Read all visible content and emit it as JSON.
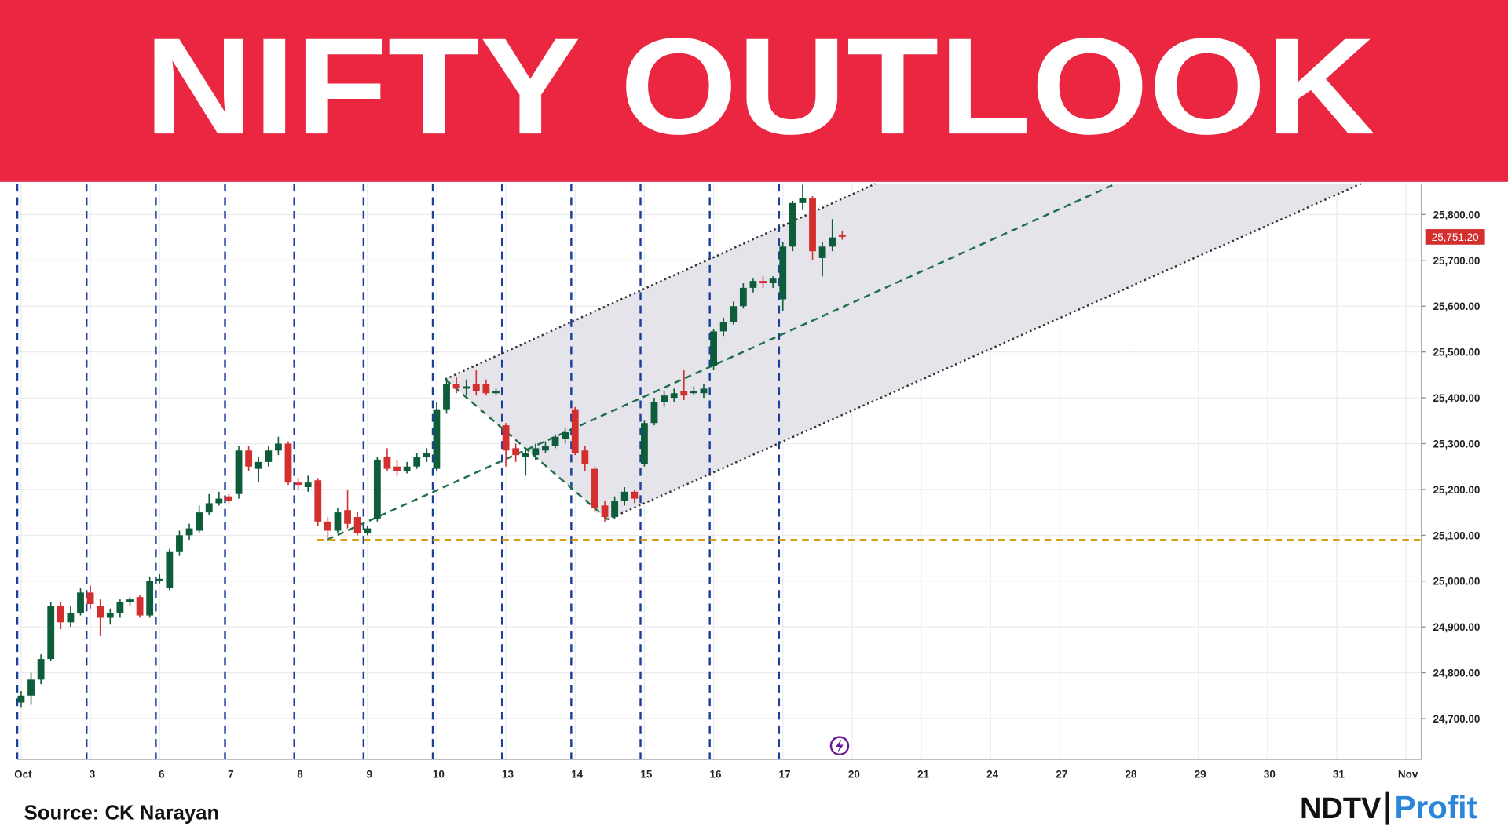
{
  "chart_data": {
    "type": "candlestick",
    "title": "NIFTY OUTLOOK",
    "source": "Source: CK Narayan",
    "logo": {
      "brand": "NDTV",
      "product": "Profit"
    },
    "up_color": "#0d5c3a",
    "down_color": "#d32f2f",
    "categories": [
      "Oct",
      null,
      null,
      null,
      null,
      null,
      null,
      "3",
      null,
      null,
      null,
      null,
      null,
      null,
      "6",
      null,
      null,
      null,
      null,
      null,
      null,
      "7",
      null,
      null,
      null,
      null,
      null,
      null,
      "8",
      null,
      null,
      null,
      null,
      null,
      null,
      "9",
      null,
      null,
      null,
      null,
      null,
      null,
      "10",
      null,
      null,
      null,
      null,
      null,
      null,
      "13",
      null,
      null,
      null,
      null,
      null,
      null,
      "14",
      null,
      null,
      null,
      null,
      null,
      null,
      "15",
      null,
      null,
      null,
      null,
      null,
      null,
      "16",
      null,
      null,
      null,
      null,
      null,
      null,
      "17",
      null,
      null,
      null,
      null,
      null,
      null,
      "20",
      null,
      null,
      null,
      null,
      null,
      null,
      "21",
      null,
      null,
      null,
      null,
      null,
      null,
      "24",
      null,
      null,
      null,
      null,
      null,
      null,
      "27",
      null,
      null,
      null,
      null,
      null,
      null,
      "28",
      null,
      null,
      null,
      null,
      null,
      null,
      "29",
      null,
      null,
      null,
      null,
      null,
      null,
      "30",
      null,
      null,
      null,
      null,
      null,
      null,
      "31",
      null,
      null,
      null,
      null,
      null,
      null,
      "Nov"
    ],
    "open": [
      24735,
      24750,
      24785,
      24830,
      24945,
      24910,
      24930,
      24975,
      24945,
      24920,
      24930,
      24955,
      24965,
      24925,
      25000,
      24985,
      25065,
      25100,
      25110,
      25150,
      25170,
      25185,
      25190,
      25285,
      25245,
      25260,
      25285,
      25300,
      25215,
      25205,
      25220,
      25130,
      25110,
      25155,
      25140,
      25105,
      25135,
      25270,
      25250,
      25240,
      25250,
      25270,
      25245,
      25375,
      25430,
      25420,
      25430,
      25430,
      25410,
      25340,
      25290,
      25270,
      25275,
      25285,
      25295,
      25310,
      25375,
      25285,
      25245,
      25165,
      25140,
      25175,
      25195,
      25255,
      25345,
      25390,
      25400,
      25415,
      25410,
      25410,
      25470,
      25545,
      25565,
      25600,
      25640,
      25655,
      25650,
      25615,
      25730,
      25825,
      25835,
      25705,
      25730,
      25755,
      null,
      null,
      null,
      null,
      null,
      null,
      null,
      null,
      null,
      null,
      null,
      null,
      null,
      null,
      null,
      null,
      null,
      null,
      null,
      null,
      null,
      null,
      null,
      null,
      null,
      null,
      null,
      null,
      null,
      null,
      null,
      null,
      null,
      null,
      null,
      null,
      null,
      null,
      null,
      null,
      null,
      null,
      null,
      null,
      null,
      null,
      null,
      null,
      null,
      null,
      null,
      null,
      null,
      null,
      null,
      null,
      null
    ],
    "high": [
      24760,
      24800,
      24840,
      24955,
      24955,
      24945,
      24985,
      24990,
      24960,
      24940,
      24960,
      24965,
      24970,
      25010,
      25015,
      25070,
      25110,
      25125,
      25165,
      25190,
      25195,
      25190,
      25295,
      25295,
      25270,
      25295,
      25315,
      25305,
      25225,
      25230,
      25225,
      25140,
      25160,
      25200,
      25150,
      25120,
      25270,
      25290,
      25265,
      25260,
      25280,
      25290,
      25390,
      25440,
      25445,
      25440,
      25460,
      25440,
      25420,
      25345,
      25300,
      25290,
      25300,
      25305,
      25320,
      25335,
      25380,
      25295,
      25250,
      25175,
      25185,
      25205,
      25200,
      25350,
      25400,
      25415,
      25420,
      25460,
      25425,
      25430,
      25550,
      25575,
      25610,
      25650,
      25660,
      25665,
      25665,
      25740,
      25830,
      25865,
      25840,
      25740,
      25790,
      25765,
      null,
      null,
      null,
      null,
      null,
      null,
      null,
      null,
      null,
      null,
      null,
      null,
      null,
      null,
      null,
      null,
      null,
      null,
      null,
      null,
      null,
      null,
      null,
      null,
      null,
      null,
      null,
      null,
      null,
      null,
      null,
      null,
      null,
      null,
      null,
      null,
      null,
      null,
      null,
      null,
      null,
      null,
      null,
      null,
      null,
      null,
      null,
      null,
      null,
      null,
      null,
      null,
      null,
      null,
      null,
      null,
      null
    ],
    "low": [
      24725,
      24730,
      24775,
      24825,
      24895,
      24900,
      24925,
      24940,
      24880,
      24905,
      24920,
      24945,
      24920,
      24920,
      24995,
      24980,
      25055,
      25090,
      25105,
      25145,
      25165,
      25170,
      25180,
      25240,
      25215,
      25250,
      25275,
      25210,
      25200,
      25195,
      25120,
      25090,
      25105,
      25115,
      25100,
      25100,
      25130,
      25240,
      25230,
      25235,
      25245,
      25260,
      25240,
      25365,
      25410,
      25405,
      25405,
      25405,
      25405,
      25250,
      25260,
      25230,
      25265,
      25280,
      25290,
      25300,
      25275,
      25240,
      25150,
      25130,
      25135,
      25165,
      25170,
      25250,
      25340,
      25380,
      25390,
      25395,
      25405,
      25400,
      25460,
      25535,
      25560,
      25595,
      25630,
      25640,
      25640,
      25590,
      25720,
      25810,
      25700,
      25665,
      25720,
      25745,
      null,
      null,
      null,
      null,
      null,
      null,
      null,
      null,
      null,
      null,
      null,
      null,
      null,
      null,
      null,
      null,
      null,
      null,
      null,
      null,
      null,
      null,
      null,
      null,
      null,
      null,
      null,
      null,
      null,
      null,
      null,
      null,
      null,
      null,
      null,
      null,
      null,
      null,
      null,
      null,
      null,
      null,
      null,
      null,
      null,
      null,
      null,
      null,
      null,
      null,
      null,
      null,
      null,
      null,
      null,
      null,
      null
    ],
    "close": [
      24750,
      24785,
      24830,
      24945,
      24910,
      24930,
      24975,
      24950,
      24920,
      24930,
      24955,
      24960,
      24925,
      25000,
      25005,
      25065,
      25100,
      25115,
      25150,
      25170,
      25180,
      25175,
      25285,
      25250,
      25260,
      25285,
      25300,
      25215,
      25210,
      25215,
      25130,
      25110,
      25150,
      25125,
      25105,
      25115,
      25265,
      25245,
      25240,
      25250,
      25270,
      25280,
      25375,
      25430,
      25420,
      25425,
      25415,
      25410,
      25415,
      25285,
      25275,
      25280,
      25290,
      25295,
      25315,
      25325,
      25280,
      25255,
      25160,
      25140,
      25175,
      25195,
      25180,
      25345,
      25390,
      25405,
      25410,
      25405,
      25415,
      25420,
      25545,
      25565,
      25600,
      25640,
      25655,
      25650,
      25660,
      25730,
      25825,
      25835,
      25720,
      25730,
      25750,
      25751.2,
      null,
      null,
      null,
      null,
      null,
      null,
      null,
      null,
      null,
      null,
      null,
      null,
      null,
      null,
      null,
      null,
      null,
      null,
      null,
      null,
      null,
      null,
      null,
      null,
      null,
      null,
      null,
      null,
      null,
      null,
      null,
      null,
      null,
      null,
      null,
      null,
      null,
      null,
      null,
      null,
      null,
      null,
      null,
      null,
      null,
      null,
      null,
      null,
      null,
      null,
      null,
      null,
      null,
      null,
      null,
      null,
      null
    ],
    "last_price": {
      "value": 25751.2,
      "label": "25,751.20"
    },
    "support_level": 25090,
    "ylim": [
      24611,
      25867
    ],
    "yticks": [
      {
        "value": 24700,
        "label": "24,700.00"
      },
      {
        "value": 24800,
        "label": "24,800.00"
      },
      {
        "value": 24900,
        "label": "24,900.00"
      },
      {
        "value": 25000,
        "label": "25,000.00"
      },
      {
        "value": 25100,
        "label": "25,100.00"
      },
      {
        "value": 25200,
        "label": "25,200.00"
      },
      {
        "value": 25300,
        "label": "25,300.00"
      },
      {
        "value": 25400,
        "label": "25,400.00"
      },
      {
        "value": 25500,
        "label": "25,500.00"
      },
      {
        "value": 25600,
        "label": "25,600.00"
      },
      {
        "value": 25700,
        "label": "25,700.00"
      },
      {
        "value": 25800,
        "label": "25,800.00"
      }
    ],
    "grid": true
  }
}
